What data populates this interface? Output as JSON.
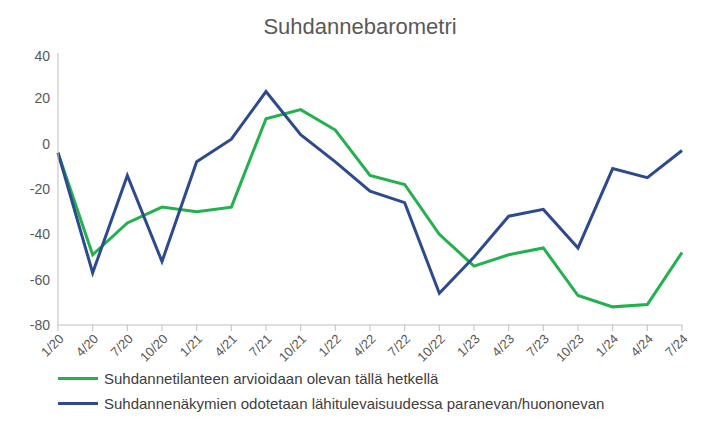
{
  "chart_data": {
    "type": "line",
    "title": "Suhdannebarometri",
    "categories": [
      "1/20",
      "4/20",
      "7/20",
      "10/20",
      "1/21",
      "4/21",
      "7/21",
      "10/21",
      "1/22",
      "4/22",
      "7/22",
      "10/22",
      "1/23",
      "4/23",
      "7/23",
      "10/23",
      "1/24",
      "4/24",
      "7/24"
    ],
    "series": [
      {
        "name": "Suhdannetilanteen arvioidaan olevan tällä hetkellä",
        "color": "#22b14c",
        "values": [
          -4,
          -49,
          -35,
          -28,
          -30,
          -28,
          11,
          15,
          6,
          -14,
          -18,
          -40,
          -54,
          -49,
          -46,
          -67,
          -72,
          -71,
          -48
        ]
      },
      {
        "name": "Suhdannenäkymien odotetaan lähitulevaisuudessa paranevan/huononevan",
        "color": "#2e4a8e",
        "values": [
          -4,
          -57,
          -14,
          -52,
          -8,
          2,
          23,
          4,
          -8,
          -21,
          -26,
          -66,
          -50,
          -32,
          -29,
          -46,
          -11,
          -15,
          -3
        ]
      }
    ],
    "ylim": [
      -80,
      40
    ],
    "yticks": [
      -80,
      -60,
      -40,
      -20,
      0,
      20,
      40
    ],
    "grid": false,
    "legend": "bottom"
  }
}
